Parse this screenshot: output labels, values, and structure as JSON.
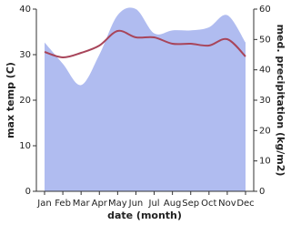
{
  "chart_data": {
    "type": "area-line",
    "xlabel": "date (month)",
    "ylabel": "max temp (C)",
    "y2label": "med. precipitation (kg/m2)",
    "categories": [
      "Jan",
      "Feb",
      "Mar",
      "Apr",
      "May",
      "Jun",
      "Jul",
      "Aug",
      "Sep",
      "Oct",
      "Nov",
      "Dec"
    ],
    "ylim": [
      0,
      40
    ],
    "yticks": [
      0,
      10,
      20,
      30,
      40
    ],
    "y2lim": [
      0,
      60
    ],
    "y2ticks": [
      0,
      10,
      20,
      30,
      40,
      50,
      60
    ],
    "series": [
      {
        "color": "#a8455a",
        "values": [
          30.6,
          29.4,
          30.4,
          32,
          35.2,
          33.8,
          33.8,
          32.4,
          32.4,
          32,
          33.4,
          29.6
        ]
      },
      {
        "color": "#b0bcf0",
        "axis": "y2",
        "values": [
          49,
          42,
          35,
          45,
          58,
          60,
          52,
          53,
          53,
          54,
          58,
          49
        ]
      }
    ]
  }
}
